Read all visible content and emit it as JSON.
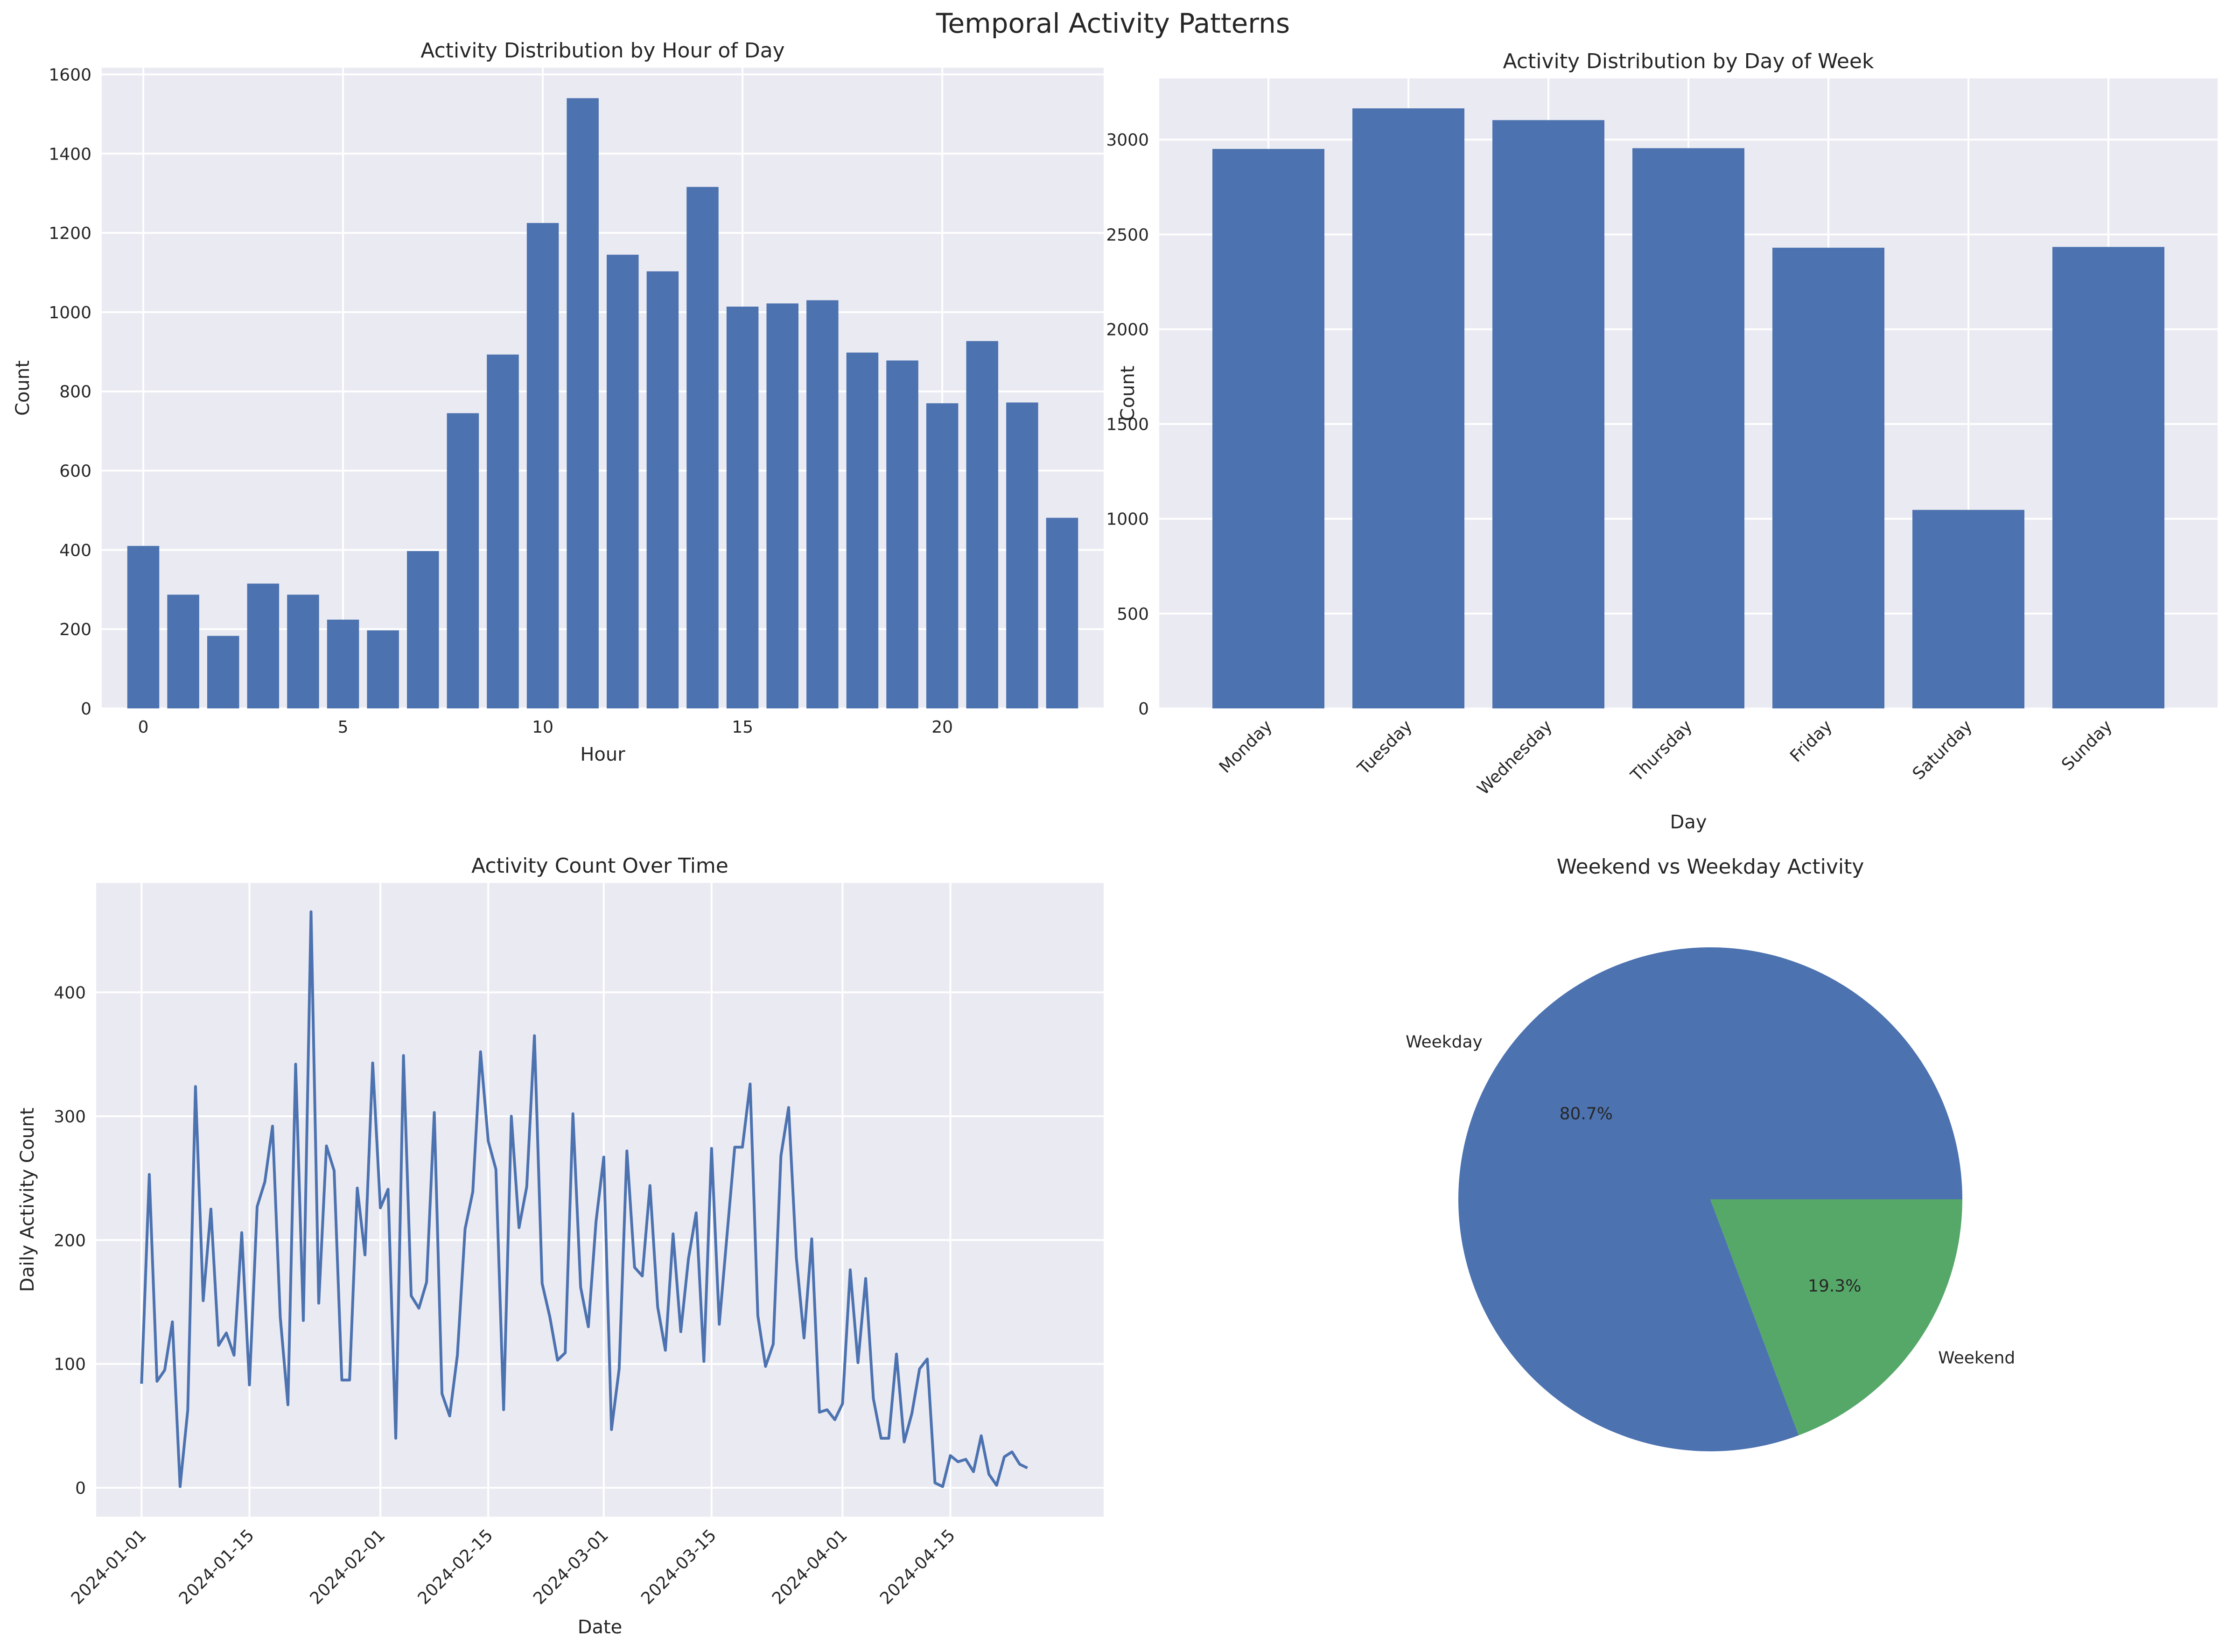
{
  "figure": {
    "title": "Temporal Activity Patterns"
  },
  "theme": {
    "panel_bg": "#eaeaf2",
    "grid": "#ffffff",
    "blue": "#4c72b0",
    "green": "#55a868",
    "text": "#262626"
  },
  "chart_data": [
    {
      "id": "hour",
      "type": "bar",
      "title": "Activity Distribution by Hour of Day",
      "xlabel": "Hour",
      "ylabel": "Count",
      "x": [
        0,
        1,
        2,
        3,
        4,
        5,
        6,
        7,
        8,
        9,
        10,
        11,
        12,
        13,
        14,
        15,
        16,
        17,
        18,
        19,
        20,
        21,
        22,
        23
      ],
      "values": [
        410,
        287,
        183,
        315,
        287,
        224,
        197,
        397,
        745,
        893,
        1225,
        1540,
        1145,
        1103,
        1316,
        1014,
        1022,
        1030,
        898,
        878,
        770,
        927,
        772,
        481
      ],
      "xticks": [
        0,
        5,
        10,
        15,
        20
      ],
      "yticks": [
        0,
        200,
        400,
        600,
        800,
        1000,
        1200,
        1400,
        1600
      ],
      "xlim": [
        -1.04,
        24.04
      ],
      "ylim": [
        0,
        1617
      ],
      "grid": true
    },
    {
      "id": "day",
      "type": "bar",
      "title": "Activity Distribution by Day of Week",
      "xlabel": "Day",
      "ylabel": "Count",
      "categories": [
        "Monday",
        "Tuesday",
        "Wednesday",
        "Thursday",
        "Friday",
        "Saturday",
        "Sunday"
      ],
      "values": [
        2951,
        3165,
        3103,
        2955,
        2430,
        1047,
        2434
      ],
      "yticks": [
        0,
        500,
        1000,
        1500,
        2000,
        2500,
        3000
      ],
      "ylim": [
        0,
        3323
      ],
      "grid": true
    },
    {
      "id": "time",
      "type": "line",
      "title": "Activity Count Over Time",
      "xlabel": "Date",
      "ylabel": "Daily Activity Count",
      "x_start": "2024-01-01",
      "xticklabels": [
        "2024-01-01",
        "2024-01-15",
        "2024-02-01",
        "2024-02-15",
        "2024-03-01",
        "2024-03-15",
        "2024-04-01",
        "2024-04-15"
      ],
      "xticks_day": [
        0,
        14,
        31,
        45,
        60,
        74,
        91,
        105
      ],
      "xlim": [
        -5.9,
        124.9
      ],
      "ylim": [
        -23.3,
        488.3
      ],
      "yticks": [
        0,
        100,
        200,
        300,
        400
      ],
      "values": [
        84,
        253,
        86,
        95,
        134,
        1,
        63,
        324,
        151,
        225,
        115,
        125,
        107,
        206,
        83,
        227,
        247,
        292,
        138,
        67,
        342,
        135,
        465,
        149,
        276,
        256,
        87,
        87,
        242,
        188,
        343,
        226,
        241,
        40,
        349,
        155,
        145,
        166,
        303,
        76,
        58,
        107,
        209,
        239,
        352,
        280,
        257,
        63,
        300,
        210,
        243,
        365,
        165,
        138,
        103,
        109,
        302,
        162,
        130,
        215,
        267,
        47,
        96,
        272,
        178,
        171,
        244,
        146,
        111,
        205,
        126,
        185,
        222,
        102,
        274,
        132,
        204,
        275,
        275,
        326,
        139,
        98,
        116,
        268,
        307,
        186,
        121,
        201,
        61,
        63,
        55,
        68,
        176,
        101,
        169,
        72,
        40,
        40,
        108,
        37,
        60,
        96,
        104,
        4,
        1,
        26,
        21,
        23,
        13,
        42,
        11,
        2,
        25,
        29,
        19,
        16
      ],
      "grid": true
    },
    {
      "id": "pie",
      "type": "pie",
      "title": "Weekend vs Weekday Activity",
      "labels": [
        "Weekday",
        "Weekend"
      ],
      "values": [
        80.7,
        19.3
      ],
      "autopct": [
        "80.7%",
        "19.3%"
      ],
      "colors": [
        "#4c72b0",
        "#55a868"
      ]
    }
  ]
}
